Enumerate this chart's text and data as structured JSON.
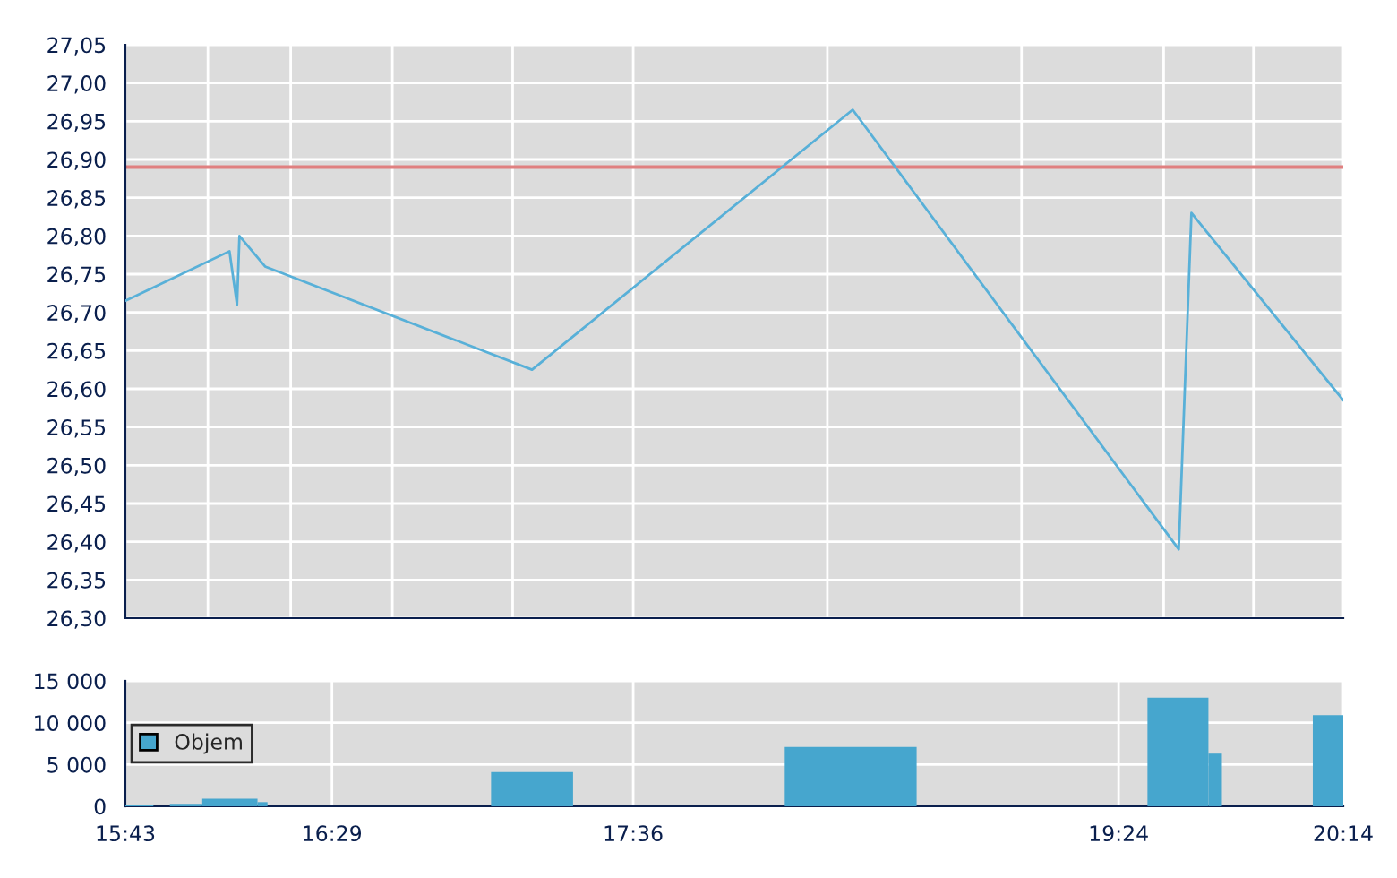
{
  "chart_data": [
    {
      "type": "line",
      "x": [
        15.717,
        16.103,
        16.131,
        16.14,
        16.235,
        17.225,
        18.414,
        19.623,
        19.67,
        20.233
      ],
      "series": [
        {
          "color": "#58b0d8",
          "values": [
            26.715,
            26.78,
            26.71,
            26.8,
            26.76,
            26.625,
            26.965,
            26.39,
            26.83,
            26.585
          ]
        }
      ],
      "xlim": [
        15.717,
        20.233
      ],
      "xticks": [
        {
          "value": 15.717,
          "label": null
        },
        {
          "value": 16.023,
          "label": null
        },
        {
          "value": 16.33,
          "label": null
        },
        {
          "value": 16.707,
          "label": null
        },
        {
          "value": 17.153,
          "label": null
        },
        {
          "value": 17.6,
          "label": null
        },
        {
          "value": 18.32,
          "label": null
        },
        {
          "value": 19.04,
          "label": null
        },
        {
          "value": 19.567,
          "label": null
        },
        {
          "value": 19.9,
          "label": null
        },
        {
          "value": 20.233,
          "label": null
        }
      ],
      "ylim": [
        26.3,
        27.05
      ],
      "yticks": [
        {
          "value": 26.3,
          "label": "26,30"
        },
        {
          "value": 26.35,
          "label": "26,35"
        },
        {
          "value": 26.4,
          "label": "26,40"
        },
        {
          "value": 26.45,
          "label": "26,45"
        },
        {
          "value": 26.5,
          "label": "26,50"
        },
        {
          "value": 26.55,
          "label": "26,55"
        },
        {
          "value": 26.6,
          "label": "26,60"
        },
        {
          "value": 26.65,
          "label": "26,65"
        },
        {
          "value": 26.7,
          "label": "26,70"
        },
        {
          "value": 26.75,
          "label": "26,75"
        },
        {
          "value": 26.8,
          "label": "26,80"
        },
        {
          "value": 26.85,
          "label": "26,85"
        },
        {
          "value": 26.9,
          "label": "26,90"
        },
        {
          "value": 26.95,
          "label": "26,95"
        },
        {
          "value": 27.0,
          "label": "27,00"
        },
        {
          "value": 27.05,
          "label": "27,05"
        }
      ],
      "ref_lines": [
        {
          "axis": "y",
          "value": 26.89,
          "color": "#e08080"
        }
      ],
      "grid": true,
      "tick_labels": "y",
      "line_style": "solid"
    },
    {
      "type": "histogram",
      "bins": [
        15.717,
        15.821,
        15.882,
        16.002,
        16.207,
        16.244,
        17.073,
        17.377,
        18.162,
        18.651,
        19.507,
        19.733,
        19.783,
        20.12,
        20.233
      ],
      "series": [
        {
          "name": "Objem",
          "color": "#46a6ce",
          "values": [
            200,
            null,
            300,
            900,
            500,
            null,
            4100,
            null,
            7100,
            null,
            13000,
            6300,
            null,
            10900
          ]
        }
      ],
      "xlim": [
        15.717,
        20.233
      ],
      "xticks": [
        {
          "value": 15.717,
          "label": "15:43"
        },
        {
          "value": 16.483,
          "label": "16:29"
        },
        {
          "value": 17.6,
          "label": "17:36"
        },
        {
          "value": 19.4,
          "label": "19:24"
        },
        {
          "value": 20.233,
          "label": "20:14"
        }
      ],
      "ylim": [
        0,
        15000
      ],
      "yticks": [
        {
          "value": 0,
          "label": "0"
        },
        {
          "value": 5000,
          "label": "5 000"
        },
        {
          "value": 10000,
          "label": "10 000"
        },
        {
          "value": 15000,
          "label": "15 000"
        }
      ],
      "grid": true,
      "legend": "left"
    }
  ]
}
